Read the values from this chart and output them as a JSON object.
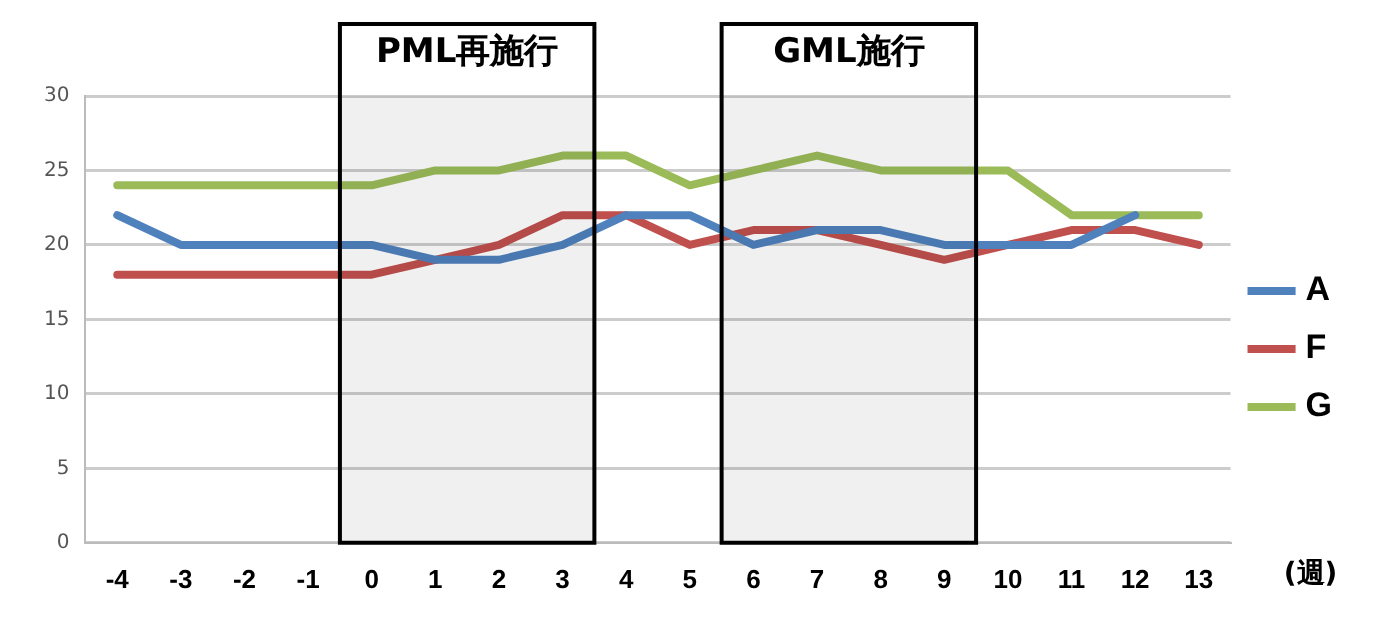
{
  "chart_data": {
    "type": "line",
    "xlabel": "(週)",
    "x": [
      -4,
      -3,
      -2,
      -1,
      0,
      1,
      2,
      3,
      4,
      5,
      6,
      7,
      8,
      9,
      10,
      11,
      12,
      13
    ],
    "xlim": [
      -4.5,
      13.5
    ],
    "xticks": [
      -4,
      -3,
      -2,
      -1,
      0,
      1,
      2,
      3,
      4,
      5,
      6,
      7,
      8,
      9,
      10,
      11,
      12,
      13
    ],
    "series": [
      {
        "name": "A",
        "color": "#4f81bd",
        "values": [
          22,
          20,
          20,
          20,
          20,
          19,
          19,
          20,
          22,
          22,
          20,
          21,
          21,
          20,
          20,
          20,
          22,
          null
        ]
      },
      {
        "name": "F",
        "color": "#c0504d",
        "values": [
          18,
          18,
          18,
          18,
          18,
          19,
          20,
          22,
          22,
          20,
          21,
          21,
          20,
          19,
          20,
          21,
          21,
          20
        ]
      },
      {
        "name": "G",
        "color": "#9bbb59",
        "values": [
          24,
          24,
          24,
          24,
          24,
          25,
          25,
          26,
          26,
          24,
          25,
          26,
          25,
          25,
          25,
          22,
          22,
          22
        ]
      }
    ],
    "ylim": [
      0,
      30
    ],
    "yticks": [
      0,
      5,
      10,
      15,
      20,
      25,
      30
    ],
    "grid": "y",
    "legend": "right",
    "marker": "none",
    "line_style": "solid",
    "bands": [
      {
        "axis": "x",
        "from": -0.5,
        "to": 3.5,
        "label": "PML再施行",
        "color": "#000000"
      },
      {
        "axis": "x",
        "from": 5.5,
        "to": 9.5,
        "label": "GML施行",
        "color": "#000000"
      }
    ]
  }
}
